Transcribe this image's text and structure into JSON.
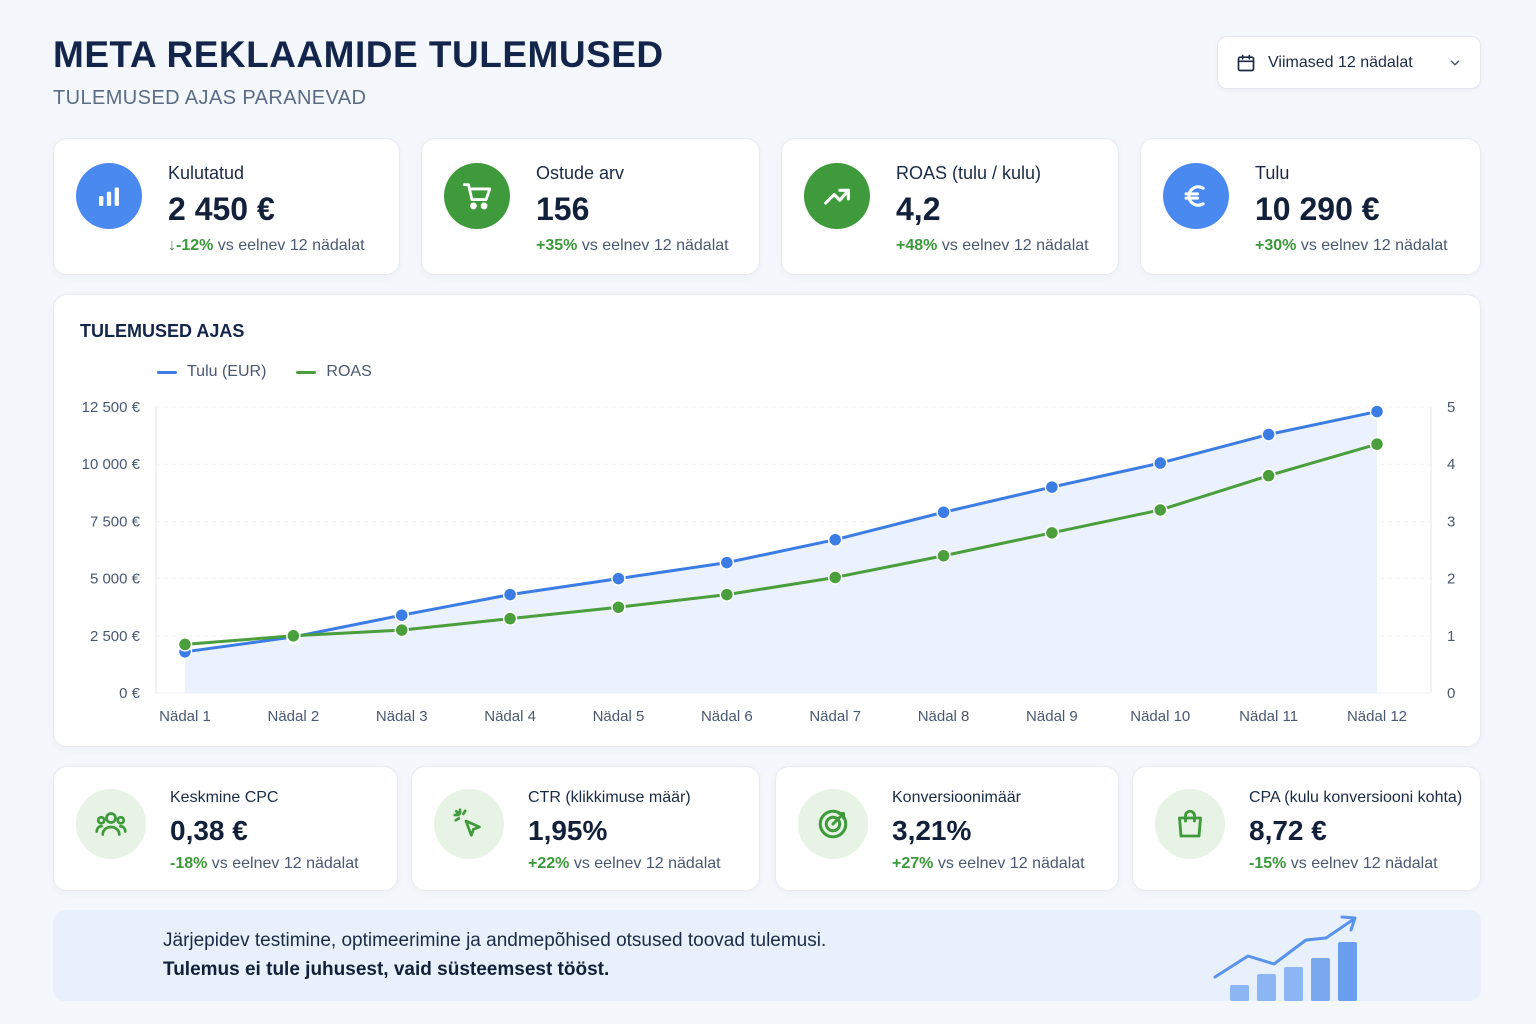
{
  "header": {
    "title": "META REKLAAMIDE TULEMUSED",
    "subtitle": "TULEMUSED AJAS PARANEVAD",
    "date_range": "Viimased 12 nädalat"
  },
  "kpis": [
    {
      "label": "Kulutatud",
      "value": "2 450 €",
      "change": "↓-12%",
      "suffix": " vs eelnev 12 nädalat",
      "icon": "bar-chart-icon",
      "color": "#4a8af0"
    },
    {
      "label": "Ostude arv",
      "value": "156",
      "change": "+35%",
      "suffix": " vs eelnev 12 nädalat",
      "icon": "cart-icon",
      "color": "#3f9a3c"
    },
    {
      "label": "ROAS (tulu / kulu)",
      "value": "4,2",
      "change": "+48%",
      "suffix": " vs eelnev 12 nädalat",
      "icon": "trend-up-icon",
      "color": "#3f9a3c"
    },
    {
      "label": "Tulu",
      "value": "10 290 €",
      "change": "+30%",
      "suffix": " vs eelnev 12 nädalat",
      "icon": "euro-icon",
      "color": "#4a8af0"
    }
  ],
  "chart": {
    "title": "TULEMUSED AJAS",
    "legend": [
      "Tulu (EUR)",
      "ROAS"
    ]
  },
  "chart_data": {
    "type": "line",
    "x": [
      "Nädal 1",
      "Nädal 2",
      "Nädal 3",
      "Nädal 4",
      "Nädal 5",
      "Nädal 6",
      "Nädal 7",
      "Nädal 8",
      "Nädal 9",
      "Nädal 10",
      "Nädal 11",
      "Nädal 12"
    ],
    "series": [
      {
        "name": "Tulu (EUR)",
        "axis": "left",
        "color": "#3b7de4",
        "values": [
          1800,
          2450,
          3400,
          4300,
          5000,
          5700,
          6700,
          7900,
          9000,
          10050,
          11300,
          12300
        ]
      },
      {
        "name": "ROAS",
        "axis": "right",
        "color": "#4a9e3c",
        "values": [
          0.85,
          1.0,
          1.1,
          1.3,
          1.5,
          1.72,
          2.02,
          2.4,
          2.8,
          3.2,
          3.8,
          4.35
        ]
      }
    ],
    "y_left": {
      "ylim": [
        0,
        12500
      ],
      "ticks": [
        0,
        2500,
        5000,
        7500,
        10000,
        12500
      ],
      "tick_labels": [
        "0 €",
        "2 500 €",
        "5 000 €",
        "7 500 €",
        "10 000 €",
        "12 500 €"
      ]
    },
    "y_right": {
      "ylim": [
        0,
        5
      ],
      "ticks": [
        0,
        1,
        2,
        3,
        4,
        5
      ],
      "tick_labels": [
        "0",
        "1",
        "2",
        "3",
        "4",
        "5"
      ]
    },
    "grid": true,
    "legend_position": "top-left"
  },
  "metrics": [
    {
      "label": "Keskmine CPC",
      "value": "0,38 €",
      "change": "-18%",
      "suffix": " vs eelnev 12 nädalat",
      "icon": "users-icon"
    },
    {
      "label": "CTR (klikkimuse määr)",
      "value": "1,95%",
      "change": "+22%",
      "suffix": " vs eelnev 12 nädalat",
      "icon": "cursor-click-icon"
    },
    {
      "label": "Konversioonimäär",
      "value": "3,21%",
      "change": "+27%",
      "suffix": " vs eelnev 12 nädalat",
      "icon": "target-icon"
    },
    {
      "label": "CPA (kulu konversiooni kohta)",
      "value": "8,72 €",
      "change": "-15%",
      "suffix": " vs eelnev 12 nädalat",
      "icon": "shopping-bag-icon"
    }
  ],
  "banner": {
    "line1": "Järjepidev testimine, optimeerimine ja andmepõhised otsused toovad tulemusi.",
    "line2": "Tulemus ei tule juhusest, vaid süsteemsest tööst.",
    "icon": "growth-chart-icon"
  }
}
